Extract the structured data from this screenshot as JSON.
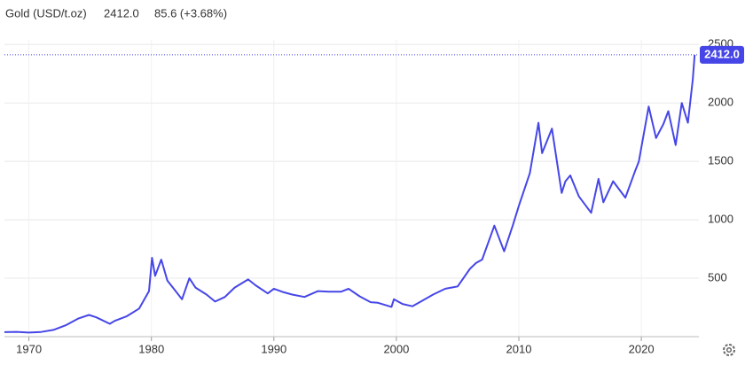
{
  "chart_data": {
    "type": "line",
    "title": "Gold (USD/t.oz)",
    "last_label": "2412.0",
    "change_label": "85.6 (+3.68%)",
    "x": [
      1968,
      1969,
      1970,
      1971,
      1972,
      1973,
      1974,
      1974.9,
      1975.5,
      1976.6,
      1977,
      1978,
      1979,
      1979.8,
      1980.05,
      1980.3,
      1980.8,
      1981.3,
      1981.9,
      1982.5,
      1983.1,
      1983.6,
      1984.5,
      1985.2,
      1986,
      1986.8,
      1987.9,
      1988.5,
      1989.5,
      1990,
      1990.8,
      1991.5,
      1992.5,
      1993.6,
      1994.5,
      1995.5,
      1996.1,
      1997,
      1997.9,
      1998.5,
      1999.6,
      1999.8,
      2000.5,
      2001.3,
      2002,
      2003,
      2004,
      2005,
      2006,
      2006.5,
      2007,
      2008,
      2008.8,
      2009.5,
      2010,
      2010.9,
      2011.6,
      2011.9,
      2012.7,
      2013.5,
      2013.8,
      2014.2,
      2014.9,
      2015.9,
      2016.5,
      2016.9,
      2017.7,
      2018.7,
      2019.5,
      2019.8,
      2020.6,
      2021.2,
      2021.8,
      2022.2,
      2022.8,
      2023.3,
      2023.8,
      2024.2,
      2024.35
    ],
    "series": [
      {
        "name": "Gold",
        "color": "#4646e8",
        "values": [
          39,
          41,
          35,
          40,
          58,
          97,
          154,
          186,
          165,
          110,
          135,
          175,
          240,
          390,
          675,
          520,
          660,
          480,
          400,
          320,
          500,
          420,
          360,
          300,
          340,
          420,
          490,
          440,
          370,
          410,
          380,
          360,
          340,
          390,
          385,
          385,
          410,
          345,
          295,
          290,
          255,
          320,
          280,
          260,
          300,
          360,
          410,
          430,
          580,
          630,
          660,
          950,
          730,
          950,
          1120,
          1400,
          1830,
          1570,
          1780,
          1230,
          1330,
          1380,
          1200,
          1060,
          1350,
          1150,
          1330,
          1190,
          1420,
          1500,
          1970,
          1700,
          1820,
          1930,
          1640,
          2000,
          1830,
          2200,
          2412
        ]
      }
    ],
    "xlim": [
      1968,
      2024.7
    ],
    "xticks": [
      1970,
      1980,
      1990,
      2000,
      2010,
      2020
    ],
    "ylim": [
      0,
      2540
    ],
    "yticks": [
      500,
      1000,
      1500,
      2000,
      2500
    ],
    "grid": true,
    "change_color": "#1fbf3a"
  }
}
